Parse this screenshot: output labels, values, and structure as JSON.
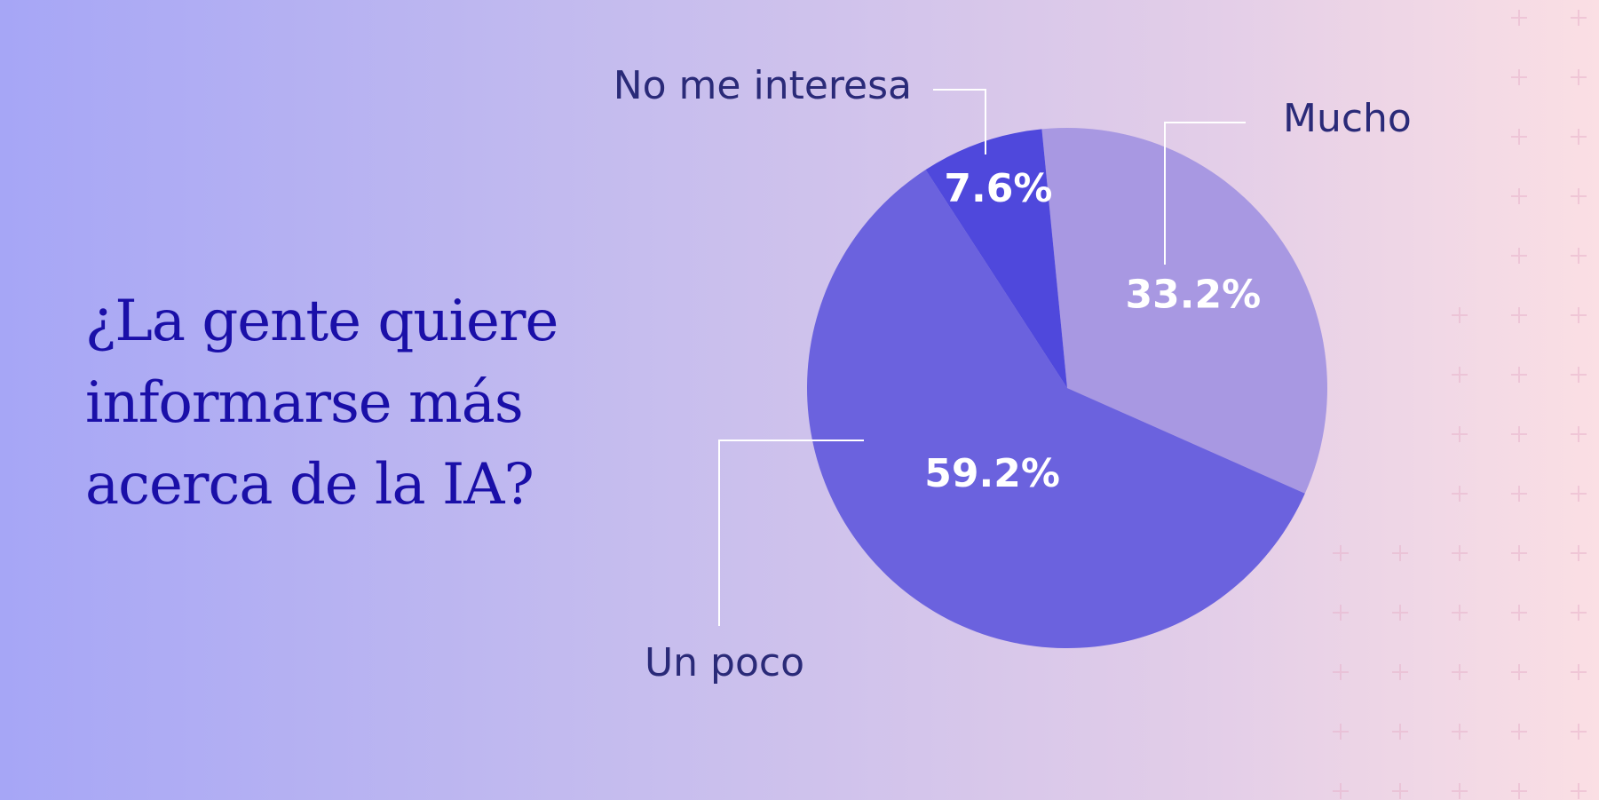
{
  "title_lines": [
    "¿La gente quiere",
    "informarse más",
    "acerca de la IA?"
  ],
  "colors": {
    "title": "#1a0fa8",
    "label": "#2a2a78",
    "value_label": "#ffffff",
    "leader": "#ffffff"
  },
  "chart_data": {
    "type": "pie",
    "slices": [
      {
        "label": "Mucho",
        "value": 33.2,
        "display": "33.2%",
        "color": "#a898e2"
      },
      {
        "label": "Un poco",
        "value": 59.2,
        "display": "59.2%",
        "color": "#6b62de"
      },
      {
        "label": "No me interesa",
        "value": 7.6,
        "display": "7.6%",
        "color": "#4f48dc"
      }
    ]
  }
}
